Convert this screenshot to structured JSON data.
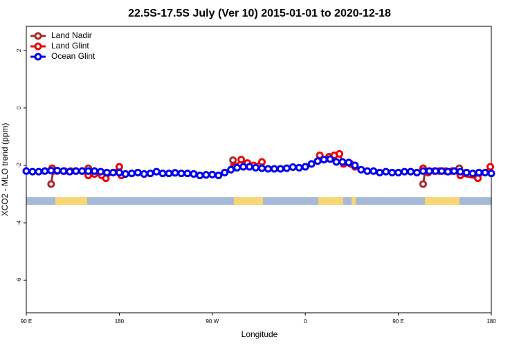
{
  "chart_data": {
    "type": "line",
    "title": "22.5S-17.5S July (Ver 10)   2015-01-01 to 2020-12-18",
    "x_label": "Longitude",
    "y_label": "XCO2 - MLO trend (ppm)",
    "xlim": [
      90,
      540
    ],
    "xticks": [
      {
        "value": 90,
        "label": "90 E"
      },
      {
        "value": 180,
        "label": "180"
      },
      {
        "value": 270,
        "label": "90 W"
      },
      {
        "value": 360,
        "label": "0"
      },
      {
        "value": 450,
        "label": "90 E"
      },
      {
        "value": 540,
        "label": "180"
      }
    ],
    "ylim": [
      -7.13,
      2.84
    ],
    "yticks": [
      -6,
      -4,
      -2,
      0,
      2
    ],
    "legend": "top-left",
    "series": [
      {
        "name": "Land Nadir",
        "color": "#a52a2a",
        "x": [
          114,
          116,
          130,
          150,
          151,
          200,
          290,
          291,
          400,
          474,
          476,
          490,
          509,
          510
        ],
        "values": [
          -2.65,
          -2.2,
          null,
          -2.1,
          -2.3,
          null,
          -1.82,
          -2.0,
          null,
          -2.65,
          -2.2,
          null,
          -2.1,
          -2.3
        ]
      },
      {
        "name": "Land Glint",
        "color": "#ee0000",
        "x": [
          115,
          120,
          127,
          133,
          138,
          144,
          150,
          156,
          163,
          167,
          180,
          182,
          250,
          292,
          298,
          304,
          310,
          318,
          340,
          374,
          378,
          383,
          388,
          393,
          397,
          404,
          408,
          440,
          474,
          479,
          485,
          490,
          496,
          502,
          510,
          527,
          539
        ],
        "values": [
          -2.1,
          -2.2,
          -2.2,
          -2.2,
          -2.2,
          -2.2,
          -2.35,
          -2.3,
          -2.35,
          -2.45,
          -2.05,
          -2.35,
          null,
          -2.05,
          -1.8,
          -1.92,
          -2.0,
          -1.88,
          null,
          -1.65,
          -1.8,
          -1.7,
          -1.65,
          -1.6,
          -1.95,
          -1.95,
          -2.05,
          null,
          -2.1,
          -2.25,
          -2.2,
          -2.2,
          -2.2,
          -2.2,
          -2.35,
          -2.45,
          -2.05
        ]
      },
      {
        "name": "Ocean Glint",
        "color": "#0000ee",
        "x": [
          90,
          96,
          102,
          108,
          114,
          120,
          126,
          132,
          138,
          144,
          150,
          156,
          162,
          168,
          174,
          180,
          186,
          192,
          198,
          204,
          210,
          216,
          222,
          228,
          234,
          240,
          246,
          252,
          258,
          264,
          270,
          276,
          282,
          288,
          294,
          300,
          306,
          312,
          318,
          324,
          330,
          336,
          342,
          348,
          354,
          360,
          366,
          372,
          378,
          384,
          390,
          396,
          402,
          408,
          414,
          420,
          426,
          432,
          438,
          444,
          450,
          456,
          462,
          468,
          474,
          480,
          486,
          492,
          498,
          504,
          510,
          516,
          522,
          528,
          534,
          540
        ],
        "values": [
          -2.2,
          -2.22,
          -2.22,
          -2.2,
          -2.18,
          -2.18,
          -2.2,
          -2.22,
          -2.2,
          -2.2,
          -2.2,
          -2.2,
          -2.22,
          -2.25,
          -2.25,
          -2.25,
          -2.3,
          -2.28,
          -2.25,
          -2.3,
          -2.28,
          -2.22,
          -2.28,
          -2.28,
          -2.26,
          -2.28,
          -2.28,
          -2.3,
          -2.35,
          -2.33,
          -2.32,
          -2.35,
          -2.25,
          -2.15,
          -2.08,
          -2.05,
          -2.05,
          -2.08,
          -2.1,
          -2.12,
          -2.12,
          -2.12,
          -2.1,
          -2.06,
          -2.08,
          -2.05,
          -1.95,
          -1.85,
          -1.8,
          -1.78,
          -1.88,
          -1.88,
          -1.9,
          -2.0,
          -2.15,
          -2.2,
          -2.2,
          -2.25,
          -2.22,
          -2.25,
          -2.25,
          -2.22,
          -2.22,
          -2.25,
          -2.2,
          -2.2,
          -2.2,
          -2.2,
          -2.22,
          -2.2,
          -2.22,
          -2.25,
          -2.28,
          -2.25,
          -2.25,
          -2.28
        ]
      }
    ]
  }
}
